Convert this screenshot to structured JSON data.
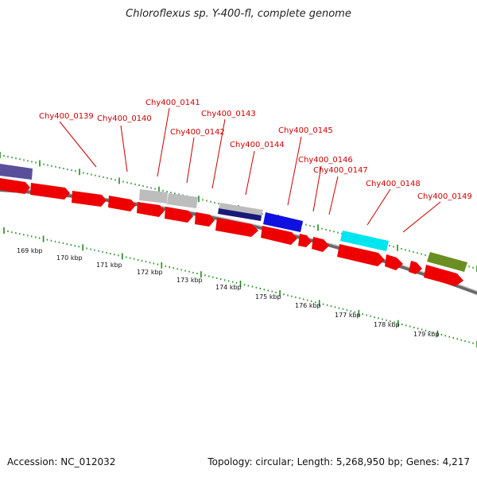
{
  "title": "Chloroflexus sp. Y-400-fl, complete genome",
  "accession": "Accession: NC_012032",
  "summary": "Topology: circular; Length: 5,268,950 bp; Genes: 4,217",
  "colors": {
    "backbone": "#7f7f7f",
    "cds_red": "#ee0000",
    "tick_green": "#1f8a1f",
    "label_red": "#cc0000",
    "slate": "#5a4f9a",
    "gray": "#b8b8b8",
    "navy": "#1a1a7a",
    "blue": "#1010e0",
    "cyan": "#00e5f0",
    "olive": "#6b8e23"
  },
  "gene_labels": [
    {
      "name": "Chy400_0139",
      "pos": 0.3
    },
    {
      "name": "Chy400_0140",
      "pos": 0.46
    },
    {
      "name": "Chy400_0141",
      "pos": 0.6
    },
    {
      "name": "Chy400_0142",
      "pos": 0.76
    },
    {
      "name": "Chy400_0143",
      "pos": 0.9
    },
    {
      "name": "Chy400_0144",
      "pos": 1.12
    },
    {
      "name": "Chy400_0145",
      "pos": 1.3
    },
    {
      "name": "Chy400_0146",
      "pos": 1.45
    },
    {
      "name": "Chy400_0147",
      "pos": 1.56
    },
    {
      "name": "Chy400_0148",
      "pos": 1.66
    },
    {
      "name": "Chy400_0149",
      "pos": 1.78
    }
  ],
  "kbp_ticks": [
    "169 kbp",
    "170 kbp",
    "171 kbp",
    "172 kbp",
    "173 kbp",
    "174 kbp",
    "175 kbp",
    "176 kbp",
    "177 kbp",
    "178 kbp",
    "179 kbp"
  ]
}
